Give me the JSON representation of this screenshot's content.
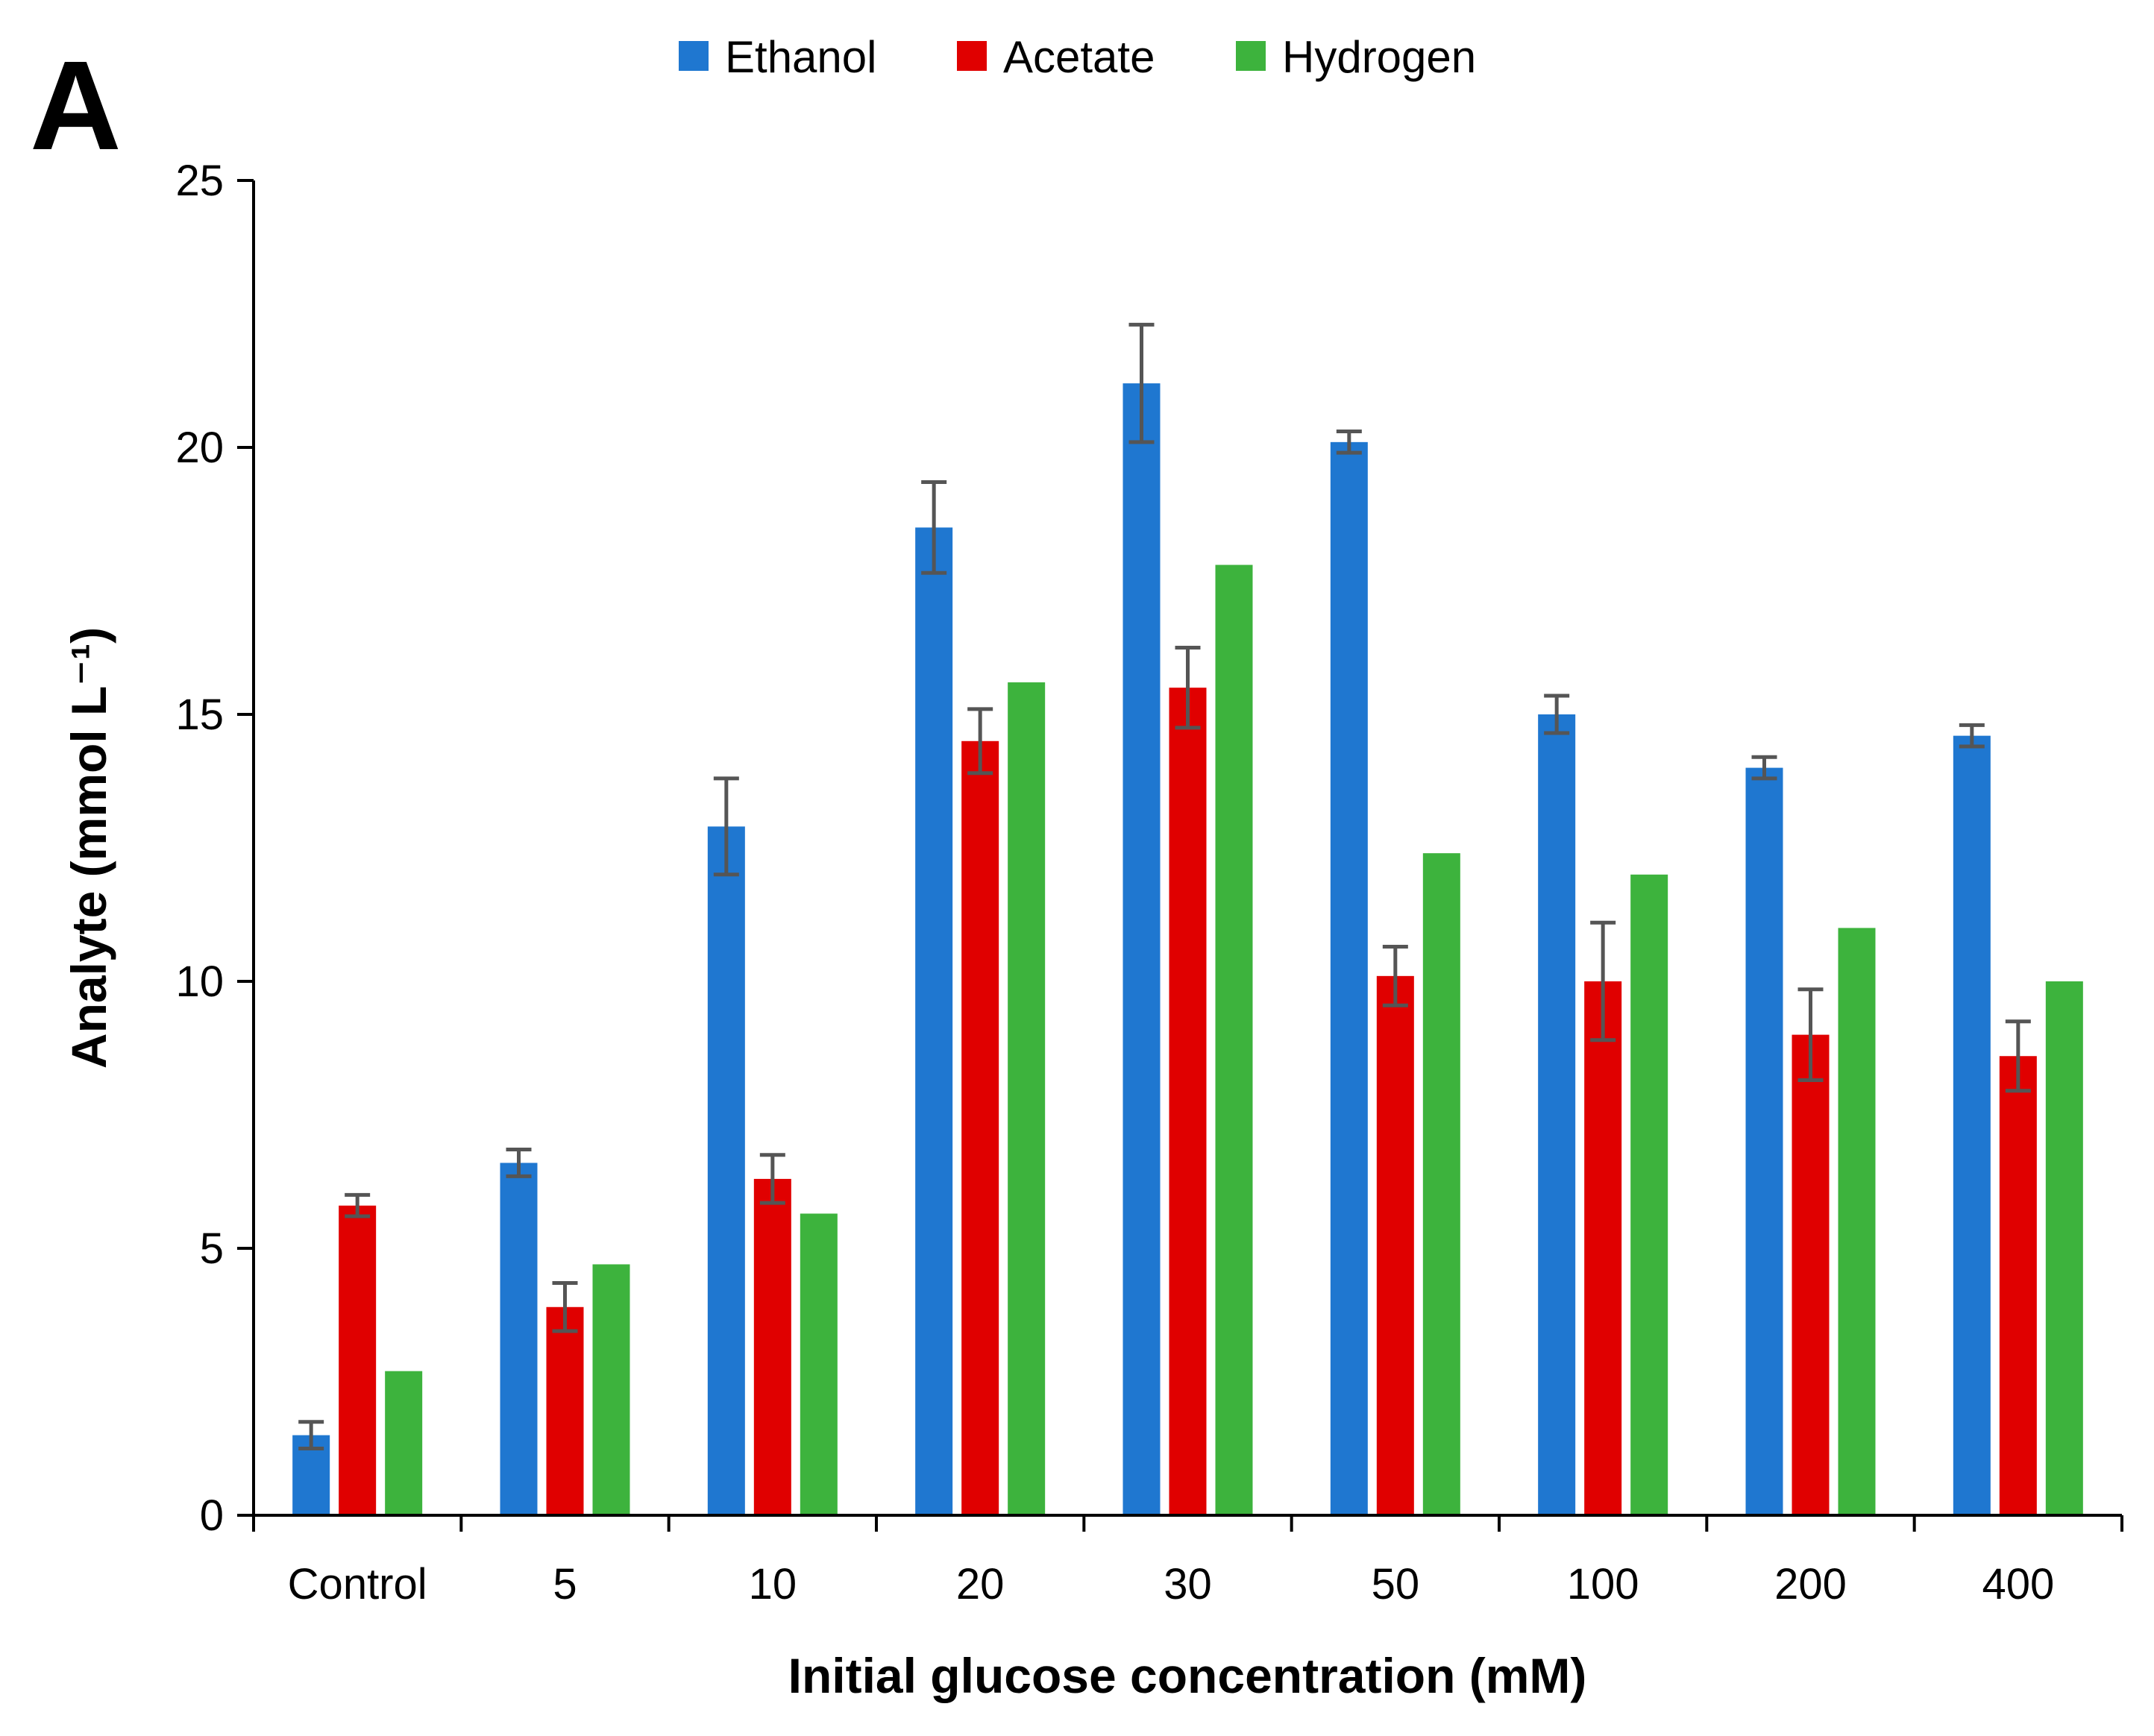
{
  "panel_label": "A",
  "chart_data": {
    "type": "bar",
    "title": "",
    "xlabel": "Initial glucose concentration (mM)",
    "ylabel": "Analyte (mmol L⁻¹)",
    "ylim": [
      0,
      25
    ],
    "yticks": [
      0,
      5,
      10,
      15,
      20,
      25
    ],
    "legend_position": "top-center",
    "categories": [
      "Control",
      "5",
      "10",
      "20",
      "30",
      "50",
      "100",
      "200",
      "400"
    ],
    "series": [
      {
        "name": "Ethanol",
        "color": "#1f77d0",
        "values": [
          1.5,
          6.6,
          12.9,
          18.5,
          21.2,
          20.1,
          15.0,
          14.0,
          14.6
        ],
        "errors": [
          0.25,
          0.25,
          0.9,
          0.85,
          1.1,
          0.2,
          0.35,
          0.2,
          0.2
        ]
      },
      {
        "name": "Acetate",
        "color": "#e00000",
        "values": [
          5.8,
          3.9,
          6.3,
          14.5,
          15.5,
          10.1,
          10.0,
          9.0,
          8.6
        ],
        "errors": [
          0.2,
          0.45,
          0.45,
          0.6,
          0.75,
          0.55,
          1.1,
          0.85,
          0.65
        ]
      },
      {
        "name": "Hydrogen",
        "color": "#3db33d",
        "values": [
          2.7,
          4.7,
          5.65,
          15.6,
          17.8,
          12.4,
          12.0,
          11.0,
          10.0
        ],
        "errors": null
      }
    ],
    "error_bar_color": "#555555"
  }
}
